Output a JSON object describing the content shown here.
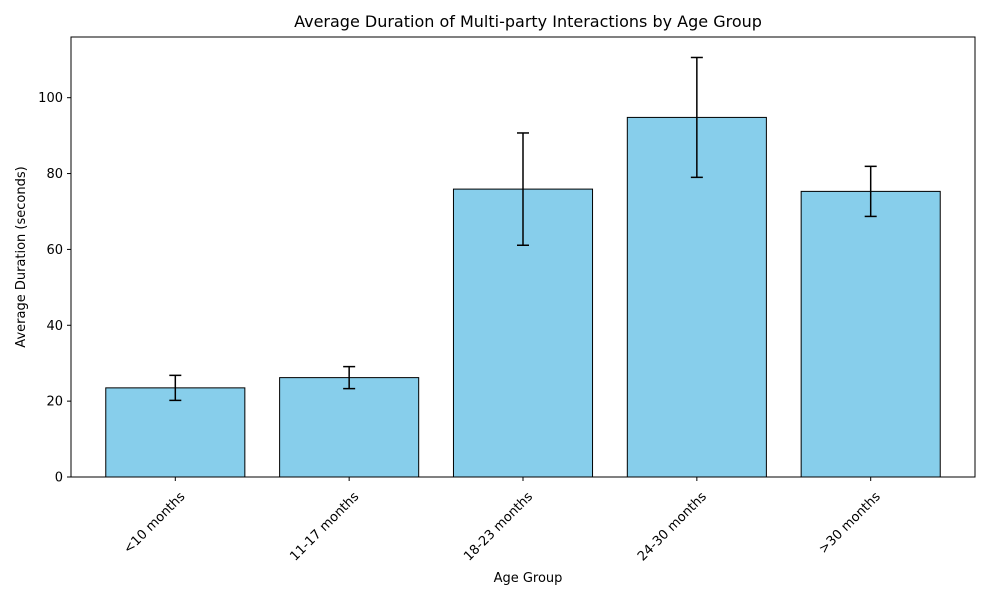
{
  "chart_data": {
    "type": "bar",
    "title": "Average Duration of Multi-party Interactions by Age Group",
    "xlabel": "Age Group",
    "ylabel": "Average Duration (seconds)",
    "categories": [
      "<10 months",
      "11-17 months",
      "18-23 months",
      "24-30 months",
      ">30 months"
    ],
    "values": [
      23.5,
      26.2,
      75.9,
      94.8,
      75.3
    ],
    "error": [
      3.3,
      2.9,
      14.8,
      15.8,
      6.6
    ],
    "ylim": [
      0,
      116
    ],
    "yticks": [
      0,
      20,
      40,
      60,
      80,
      100
    ],
    "grid": false,
    "bar_color": "#87ceeb",
    "edge_color": "#000000",
    "error_color": "#000000"
  }
}
